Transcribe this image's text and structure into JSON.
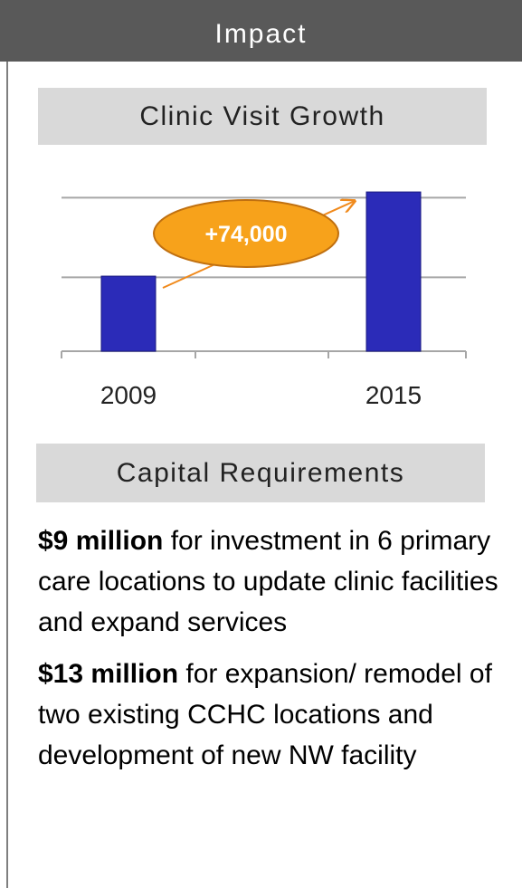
{
  "header": {
    "title": "Impact"
  },
  "chart_data": {
    "type": "bar",
    "title": "Clinic Visit Growth",
    "categories": [
      "2009",
      "2015"
    ],
    "values": [
      66000,
      140000
    ],
    "color": "#2b2bb8",
    "ylim": [
      0,
      150000
    ],
    "yticks": [
      65000,
      135000
    ],
    "grid": true,
    "annotation": "+74,000"
  },
  "capital": {
    "title": "Capital Requirements",
    "items": [
      {
        "bold": "$9 million",
        "text": " for investment in 6 primary care locations to update clinic facilities and expand services"
      },
      {
        "bold": "$13 million",
        "text": " for expansion/ remodel of two existing CCHC locations and development of new NW facility"
      }
    ]
  }
}
